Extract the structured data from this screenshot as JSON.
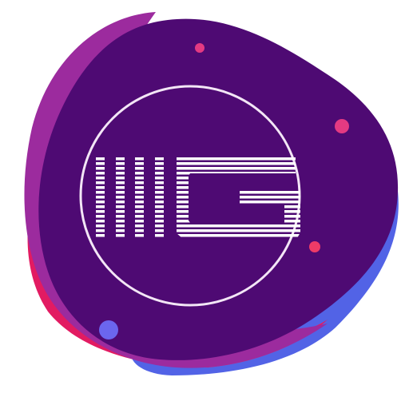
{
  "logo": {
    "lettering": "IIIIG",
    "description_icon": "app-logo-icon",
    "colors": {
      "background": "#ffffff",
      "blob_main": "#4e0a73",
      "blob_pink": "#e21b62",
      "blob_magenta": "#9c2b9e",
      "blob_blue": "#5263e6",
      "blob_light_blue": "#6f82ee",
      "ring": "#f3e6f6",
      "letter_stripes": "#ffffff",
      "dot_pink": "#e43a82",
      "dot_red": "#ef3b67",
      "dot_blue": "#6b66ee"
    }
  }
}
